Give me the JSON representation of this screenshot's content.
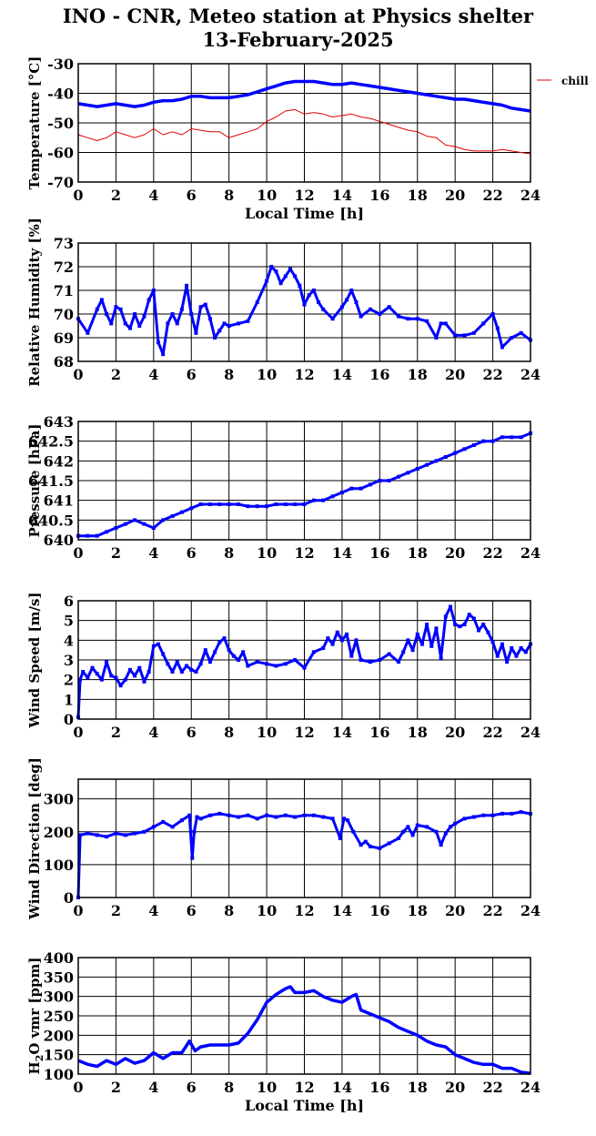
{
  "page": {
    "title_line1": "INO - CNR, Meteo station at Physics shelter",
    "title_line2": "13-February-2025"
  },
  "colors": {
    "primary": "#0000ff",
    "secondary": "#e00000",
    "grid": "#000000"
  },
  "chart_data": [
    {
      "type": "line",
      "id": "temperature",
      "ylabel": "Temperature [°C]",
      "xlabel": "Local Time [h]",
      "xlim": [
        0,
        24
      ],
      "ylim": [
        -70,
        -30
      ],
      "xticks": [
        0,
        2,
        4,
        6,
        8,
        10,
        12,
        14,
        16,
        18,
        20,
        22,
        24
      ],
      "yticks": [
        -70,
        -60,
        -50,
        -40,
        -30
      ],
      "grid": true,
      "legend": "right",
      "series": [
        {
          "name": "",
          "color": "#0000ff",
          "x": [
            0,
            0.5,
            1,
            1.5,
            2,
            2.5,
            3,
            3.5,
            4,
            4.5,
            5,
            5.5,
            6,
            6.5,
            7,
            7.5,
            8,
            8.5,
            9,
            9.5,
            10,
            10.5,
            11,
            11.5,
            12,
            12.5,
            13,
            13.5,
            14,
            14.5,
            15,
            15.5,
            16,
            16.5,
            17,
            17.5,
            18,
            18.5,
            19,
            19.5,
            20,
            20.5,
            21,
            21.5,
            22,
            22.5,
            23,
            23.5,
            24
          ],
          "y": [
            -43.5,
            -44,
            -44.5,
            -44,
            -43.5,
            -44,
            -44.5,
            -44,
            -43,
            -42.5,
            -42.5,
            -42,
            -41,
            -41,
            -41.5,
            -41.5,
            -41.5,
            -41,
            -40.5,
            -39.5,
            -38.5,
            -37.5,
            -36.5,
            -36,
            -36,
            -36,
            -36.5,
            -37,
            -37,
            -36.5,
            -37,
            -37.5,
            -38,
            -38.5,
            -39,
            -39.5,
            -40,
            -40.5,
            -41,
            -41.5,
            -42,
            -42,
            -42.5,
            -43,
            -43.5,
            -44,
            -45,
            -45.5,
            -46
          ]
        },
        {
          "name": "chill",
          "color": "#e00000",
          "x": [
            0,
            0.5,
            1,
            1.5,
            2,
            2.5,
            3,
            3.5,
            4,
            4.5,
            5,
            5.5,
            6,
            6.5,
            7,
            7.5,
            8,
            8.5,
            9,
            9.5,
            10,
            10.5,
            11,
            11.5,
            12,
            12.5,
            13,
            13.5,
            14,
            14.5,
            15,
            15.5,
            16,
            16.5,
            17,
            17.5,
            18,
            18.5,
            19,
            19.5,
            20,
            20.5,
            21,
            21.5,
            22,
            22.5,
            23,
            23.5,
            24
          ],
          "y": [
            -54,
            -55,
            -56,
            -55,
            -53,
            -54,
            -55,
            -54,
            -52,
            -54,
            -53,
            -54,
            -52,
            -52.5,
            -53,
            -53,
            -55,
            -54,
            -53,
            -52,
            -49.5,
            -48,
            -46,
            -45.5,
            -47,
            -46.5,
            -47,
            -48,
            -47.5,
            -47,
            -48,
            -48.5,
            -49.5,
            -50.5,
            -51.5,
            -52.5,
            -53,
            -54.5,
            -55,
            -57.5,
            -58,
            -59,
            -59.5,
            -59.5,
            -59.5,
            -59,
            -59.5,
            -60,
            -60.5
          ]
        }
      ]
    },
    {
      "type": "scatter",
      "id": "humidity",
      "ylabel": "Relative Humidity [%]",
      "xlabel": "",
      "xlim": [
        0,
        24
      ],
      "ylim": [
        68,
        73
      ],
      "xticks": [
        0,
        2,
        4,
        6,
        8,
        10,
        12,
        14,
        16,
        18,
        20,
        22,
        24
      ],
      "yticks": [
        68,
        69,
        70,
        71,
        72,
        73
      ],
      "grid": true,
      "series": [
        {
          "name": "",
          "color": "#0000ff",
          "x": [
            0,
            0.5,
            1,
            1.25,
            1.5,
            1.75,
            2,
            2.25,
            2.5,
            2.75,
            3,
            3.25,
            3.5,
            3.75,
            4,
            4.25,
            4.5,
            4.75,
            5,
            5.25,
            5.5,
            5.75,
            6,
            6.25,
            6.5,
            6.75,
            7,
            7.25,
            7.5,
            7.75,
            8,
            8.5,
            9,
            9.5,
            10,
            10.25,
            10.5,
            10.75,
            11,
            11.25,
            11.5,
            11.75,
            12,
            12.25,
            12.5,
            12.75,
            13,
            13.5,
            14,
            14.25,
            14.5,
            14.75,
            15,
            15.5,
            16,
            16.5,
            17,
            17.5,
            18,
            18.5,
            19,
            19.25,
            19.5,
            20,
            20.5,
            21,
            21.5,
            22,
            22.25,
            22.5,
            23,
            23.5,
            24
          ],
          "y": [
            69.8,
            69.2,
            70.2,
            70.6,
            70.0,
            69.6,
            70.3,
            70.2,
            69.6,
            69.4,
            70.0,
            69.5,
            69.9,
            70.6,
            71.0,
            68.8,
            68.3,
            69.6,
            70.0,
            69.6,
            70.2,
            71.2,
            70.0,
            69.2,
            70.3,
            70.4,
            69.8,
            69.0,
            69.3,
            69.6,
            69.5,
            69.6,
            69.7,
            70.5,
            71.4,
            72.0,
            71.8,
            71.3,
            71.6,
            71.9,
            71.6,
            71.2,
            70.4,
            70.8,
            71.0,
            70.5,
            70.2,
            69.8,
            70.3,
            70.6,
            71.0,
            70.5,
            69.9,
            70.2,
            70.0,
            70.3,
            69.9,
            69.8,
            69.8,
            69.7,
            69.0,
            69.6,
            69.6,
            69.1,
            69.1,
            69.2,
            69.6,
            70.0,
            69.4,
            68.6,
            69.0,
            69.2,
            68.9
          ]
        }
      ]
    },
    {
      "type": "scatter",
      "id": "pressure",
      "ylabel": "Pressure [hPa]",
      "xlabel": "",
      "xlim": [
        0,
        24
      ],
      "ylim": [
        640,
        643
      ],
      "xticks": [
        0,
        2,
        4,
        6,
        8,
        10,
        12,
        14,
        16,
        18,
        20,
        22,
        24
      ],
      "yticks": [
        640,
        640.5,
        641,
        641.5,
        642,
        642.5,
        643
      ],
      "ytick_labels": [
        "640",
        "640.5",
        "641",
        "641.5",
        "642",
        "642.5",
        "643"
      ],
      "grid": true,
      "series": [
        {
          "name": "",
          "color": "#0000ff",
          "x": [
            0,
            0.5,
            1,
            1.5,
            2,
            2.5,
            3,
            3.5,
            4,
            4.5,
            5,
            5.5,
            6,
            6.5,
            7,
            7.5,
            8,
            8.5,
            9,
            9.5,
            10,
            10.5,
            11,
            11.5,
            12,
            12.5,
            13,
            13.5,
            14,
            14.5,
            15,
            15.5,
            16,
            16.5,
            17,
            17.5,
            18,
            18.5,
            19,
            19.5,
            20,
            20.5,
            21,
            21.5,
            22,
            22.5,
            23,
            23.5,
            24
          ],
          "y": [
            640.1,
            640.1,
            640.1,
            640.2,
            640.3,
            640.4,
            640.5,
            640.4,
            640.3,
            640.5,
            640.6,
            640.7,
            640.8,
            640.9,
            640.9,
            640.9,
            640.9,
            640.9,
            640.85,
            640.85,
            640.85,
            640.9,
            640.9,
            640.9,
            640.9,
            641.0,
            641.0,
            641.1,
            641.2,
            641.3,
            641.3,
            641.4,
            641.5,
            641.5,
            641.6,
            641.7,
            641.8,
            641.9,
            642.0,
            642.1,
            642.2,
            642.3,
            642.4,
            642.5,
            642.5,
            642.6,
            642.6,
            642.6,
            642.7
          ]
        }
      ]
    },
    {
      "type": "scatter",
      "id": "wind_speed",
      "ylabel": "Wind Speed [m/s]",
      "xlabel": "",
      "xlim": [
        0,
        24
      ],
      "ylim": [
        0,
        6
      ],
      "xticks": [
        0,
        2,
        4,
        6,
        8,
        10,
        12,
        14,
        16,
        18,
        20,
        22,
        24
      ],
      "yticks": [
        0,
        1,
        2,
        3,
        4,
        5,
        6
      ],
      "grid": true,
      "series": [
        {
          "name": "",
          "color": "#0000ff",
          "x": [
            0,
            0.1,
            0.25,
            0.5,
            0.75,
            1,
            1.25,
            1.5,
            1.75,
            2,
            2.25,
            2.5,
            2.75,
            3,
            3.25,
            3.5,
            3.75,
            4,
            4.25,
            4.5,
            4.75,
            5,
            5.25,
            5.5,
            5.75,
            6,
            6.25,
            6.5,
            6.75,
            7,
            7.25,
            7.5,
            7.75,
            8,
            8.25,
            8.5,
            8.75,
            9,
            9.5,
            10,
            10.5,
            11,
            11.5,
            12,
            12.5,
            13,
            13.25,
            13.5,
            13.75,
            14,
            14.25,
            14.5,
            14.75,
            15,
            15.5,
            16,
            16.5,
            17,
            17.25,
            17.5,
            17.75,
            18,
            18.25,
            18.5,
            18.75,
            19,
            19.25,
            19.5,
            19.75,
            20,
            20.25,
            20.5,
            20.75,
            21,
            21.25,
            21.5,
            21.75,
            22,
            22.25,
            22.5,
            22.75,
            23,
            23.25,
            23.5,
            23.75,
            24
          ],
          "y": [
            0.1,
            2.0,
            2.4,
            2.1,
            2.6,
            2.3,
            2.0,
            2.9,
            2.2,
            2.1,
            1.7,
            2.0,
            2.5,
            2.2,
            2.6,
            1.9,
            2.4,
            3.7,
            3.8,
            3.3,
            2.8,
            2.4,
            2.9,
            2.4,
            2.7,
            2.5,
            2.4,
            2.8,
            3.5,
            2.9,
            3.4,
            3.9,
            4.1,
            3.5,
            3.2,
            3.0,
            3.4,
            2.7,
            2.9,
            2.8,
            2.7,
            2.8,
            3.0,
            2.6,
            3.4,
            3.6,
            4.1,
            3.8,
            4.4,
            4.0,
            4.3,
            3.2,
            4.0,
            3.0,
            2.9,
            3.0,
            3.3,
            2.9,
            3.4,
            4.0,
            3.5,
            4.3,
            3.8,
            4.8,
            3.7,
            4.6,
            3.1,
            5.2,
            5.7,
            4.8,
            4.7,
            4.8,
            5.3,
            5.1,
            4.5,
            4.8,
            4.4,
            3.9,
            3.2,
            3.8,
            2.9,
            3.6,
            3.2,
            3.6,
            3.4,
            3.8
          ]
        }
      ]
    },
    {
      "type": "scatter",
      "id": "wind_direction",
      "ylabel": "Wind Direction [deg]",
      "xlabel": "",
      "xlim": [
        0,
        24
      ],
      "ylim": [
        0,
        360
      ],
      "xticks": [
        0,
        2,
        4,
        6,
        8,
        10,
        12,
        14,
        16,
        18,
        20,
        22,
        24
      ],
      "yticks": [
        0,
        100,
        200,
        300
      ],
      "grid": true,
      "series": [
        {
          "name": "",
          "color": "#0000ff",
          "x": [
            0,
            0.1,
            0.5,
            1,
            1.5,
            2,
            2.5,
            3,
            3.5,
            4,
            4.5,
            5,
            5.5,
            5.9,
            6.05,
            6.15,
            6.3,
            6.5,
            7,
            7.5,
            8,
            8.5,
            9,
            9.5,
            10,
            10.5,
            11,
            11.5,
            12,
            12.5,
            13,
            13.5,
            13.9,
            14.1,
            14.3,
            14.6,
            15,
            15.25,
            15.5,
            16,
            16.5,
            17,
            17.25,
            17.5,
            17.75,
            18,
            18.5,
            19,
            19.25,
            19.5,
            19.75,
            20,
            20.5,
            21,
            21.5,
            22,
            22.5,
            23,
            23.5,
            24
          ],
          "y": [
            0,
            190,
            195,
            190,
            185,
            195,
            190,
            195,
            200,
            215,
            230,
            215,
            235,
            250,
            120,
            200,
            245,
            240,
            250,
            255,
            250,
            245,
            250,
            240,
            250,
            245,
            250,
            245,
            250,
            250,
            245,
            240,
            180,
            240,
            235,
            200,
            160,
            170,
            155,
            150,
            165,
            180,
            200,
            215,
            190,
            220,
            215,
            200,
            160,
            195,
            215,
            225,
            240,
            245,
            250,
            250,
            255,
            255,
            260,
            255
          ]
        }
      ]
    },
    {
      "type": "line",
      "id": "h2o",
      "ylabel": "H2O vmr [ppm]",
      "xlabel": "Local Time [h]",
      "xlim": [
        0,
        24
      ],
      "ylim": [
        100,
        400
      ],
      "xticks": [
        0,
        2,
        4,
        6,
        8,
        10,
        12,
        14,
        16,
        18,
        20,
        22,
        24
      ],
      "yticks": [
        100,
        150,
        200,
        250,
        300,
        350,
        400
      ],
      "grid": true,
      "series": [
        {
          "name": "",
          "color": "#0000ff",
          "x": [
            0,
            0.5,
            1,
            1.5,
            2,
            2.5,
            3,
            3.5,
            4,
            4.5,
            5,
            5.5,
            5.9,
            6.2,
            6.5,
            7,
            7.5,
            8,
            8.5,
            9,
            9.5,
            10,
            10.5,
            11,
            11.25,
            11.5,
            12,
            12.5,
            13,
            13.5,
            14,
            14.5,
            14.75,
            15,
            15.5,
            16,
            16.5,
            17,
            17.5,
            18,
            18.5,
            19,
            19.5,
            20,
            20.5,
            21,
            21.5,
            22,
            22.5,
            23,
            23.5,
            24
          ],
          "y": [
            135,
            125,
            120,
            135,
            125,
            140,
            128,
            135,
            155,
            140,
            155,
            155,
            185,
            160,
            170,
            175,
            175,
            175,
            180,
            205,
            240,
            285,
            305,
            320,
            325,
            310,
            310,
            315,
            300,
            290,
            285,
            300,
            305,
            265,
            255,
            245,
            235,
            220,
            210,
            200,
            185,
            175,
            170,
            150,
            140,
            130,
            125,
            125,
            115,
            115,
            105,
            102
          ]
        }
      ]
    }
  ]
}
